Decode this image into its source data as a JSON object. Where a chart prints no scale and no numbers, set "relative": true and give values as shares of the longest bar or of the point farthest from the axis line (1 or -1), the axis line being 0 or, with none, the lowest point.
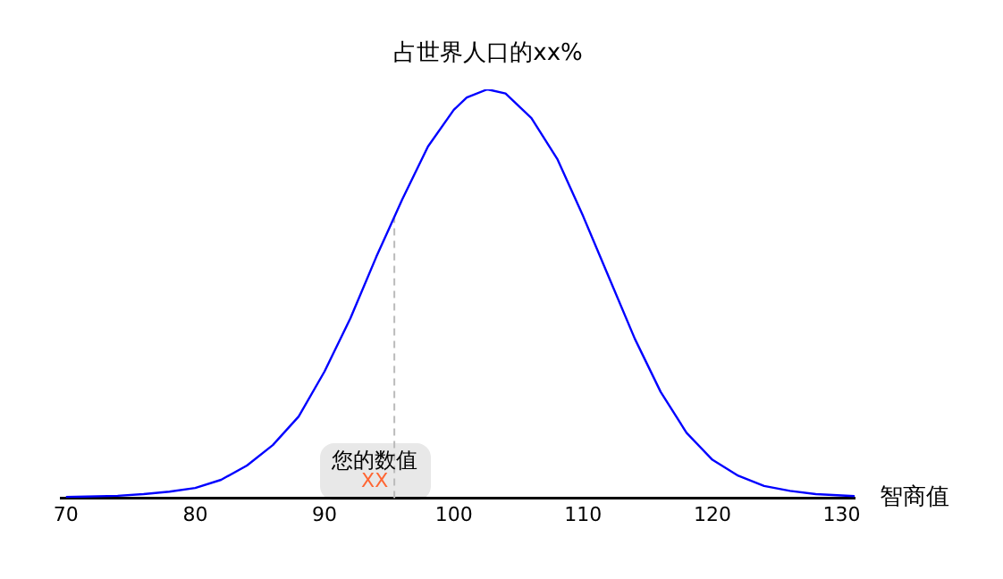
{
  "chart_data": {
    "type": "line",
    "title": "占世界人口的xx%",
    "xlabel": "智商值",
    "relative": true,
    "x": [
      70,
      74,
      76,
      78,
      80,
      82,
      84,
      86,
      88,
      90,
      92,
      94,
      96,
      98,
      100,
      101,
      102.6,
      104,
      106,
      108,
      110,
      112,
      114,
      116,
      118,
      120,
      122,
      124,
      126,
      128,
      131
    ],
    "series": [
      {
        "color": "#0000ff",
        "values": [
          0.003,
          0.006,
          0.01,
          0.016,
          0.025,
          0.045,
          0.08,
          0.13,
          0.2,
          0.31,
          0.44,
          0.59,
          0.73,
          0.86,
          0.95,
          0.98,
          1.0,
          0.99,
          0.93,
          0.83,
          0.69,
          0.54,
          0.39,
          0.26,
          0.16,
          0.094,
          0.055,
          0.03,
          0.018,
          0.01,
          0.005
        ]
      }
    ],
    "xlim": [
      69.6,
      131
    ],
    "xticks": [
      70,
      80,
      90,
      100,
      110,
      120,
      130
    ],
    "ref_lines": [
      {
        "axis": "x",
        "value": 95.4,
        "color": "#bbbbbb",
        "line_style": "dashed"
      }
    ],
    "annotations": [
      {
        "text": "您的数值",
        "x": 95.4,
        "y": 0.09
      },
      {
        "text": "XX",
        "x": 95.4,
        "y": 0.04
      }
    ],
    "marker": "none",
    "line_style": "solid",
    "grid": false,
    "legend": false
  }
}
